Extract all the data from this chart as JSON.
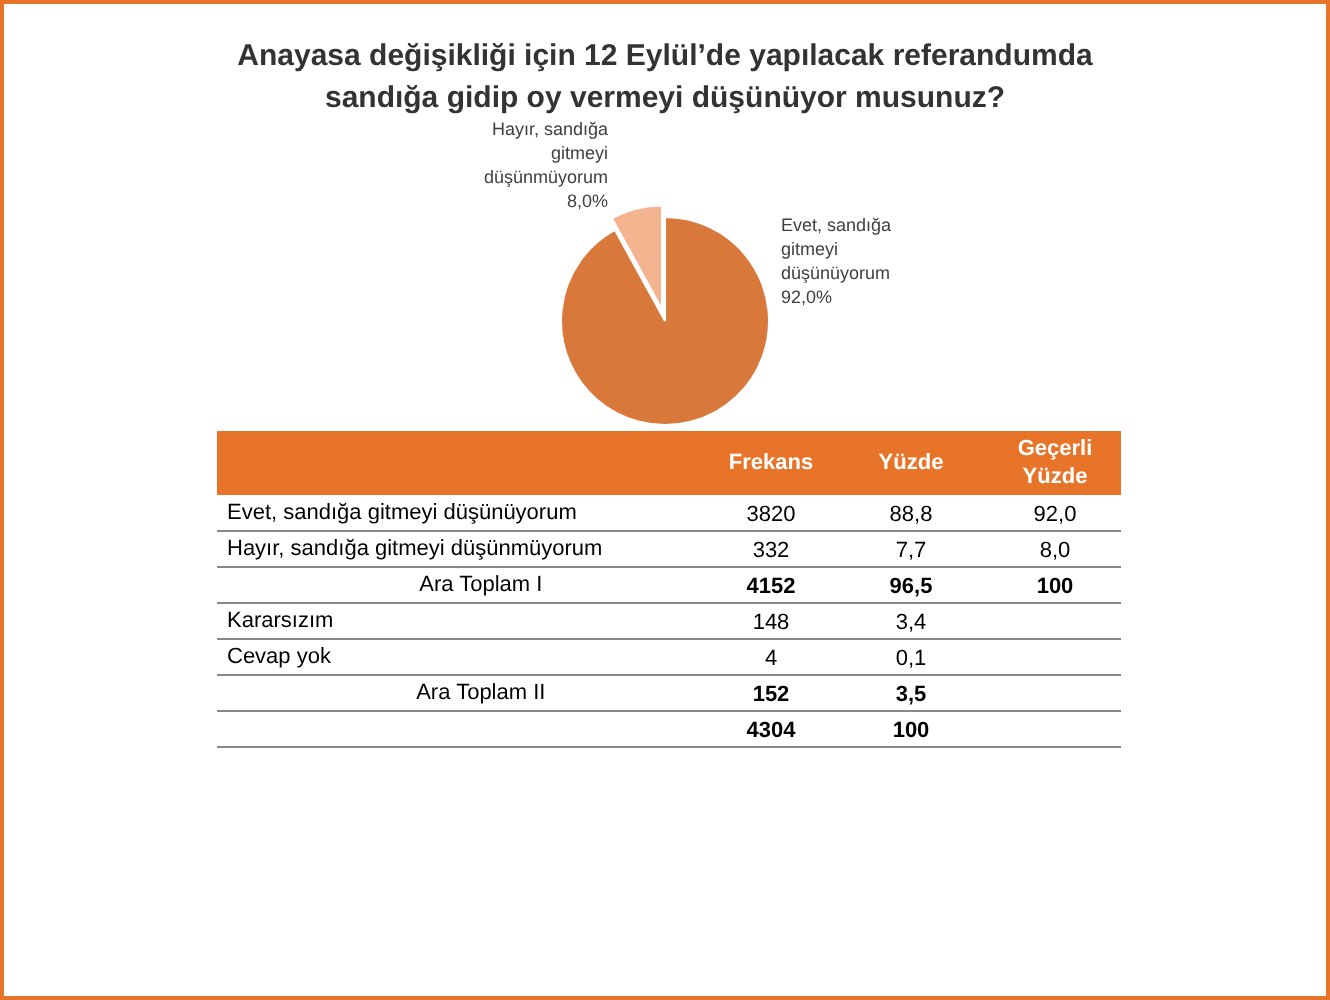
{
  "chart_data": {
    "type": "pie",
    "title": "Anayasa değişikliği için 12 Eylül’de yapılacak referandumda sandığa gidip oy vermeyi düşünüyor musunuz?",
    "categories": [
      "Evet, sandığa gitmeyi düşünüyorum",
      "Hayır, sandığa gitmeyi düşünmüyorum"
    ],
    "values": [
      92.0,
      8.0
    ],
    "colors": [
      "#d8783a",
      "#f3b48f"
    ],
    "value_labels": [
      "92,0%",
      "8,0%"
    ],
    "annotations": [
      "Frekans",
      "Yüzde",
      "Geçerli Yüzde",
      "Evet, sandığa gitmeyi düşünüyorum",
      "3820",
      "88,8",
      "92,0",
      "Hayır, sandığa gitmeyi düşünmüyorum",
      "332",
      "7,7",
      "8,0",
      "Ara Toplam I",
      "4152",
      "96,5",
      "100",
      "Kararsızım",
      "148",
      "3,4",
      "Cevap yok",
      "4",
      "0,1",
      "Ara Toplam II",
      "152",
      "3,5",
      "4304",
      "100"
    ]
  }
}
